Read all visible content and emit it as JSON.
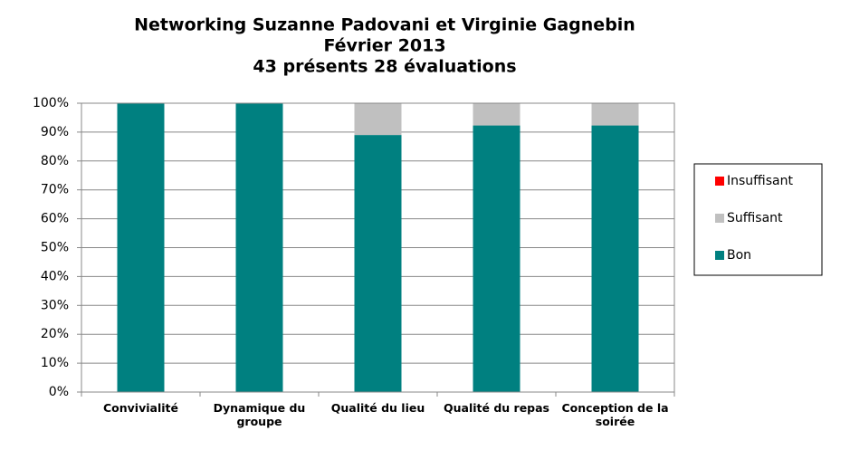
{
  "chart_data": {
    "type": "stacked_bar",
    "title": "Networking Suzanne Padovani et Virginie Gagnebin",
    "subtitle": [
      "Février 2013",
      "43 présents 28 évaluations"
    ],
    "categories": [
      "Convivialité",
      "Dynamique du groupe",
      "Qualité du lieu",
      "Qualité du repas",
      "Conception de la soirée"
    ],
    "series": [
      {
        "name": "Bon",
        "color": "#008080",
        "values": [
          100,
          100,
          89,
          92.3,
          92.3
        ]
      },
      {
        "name": "Suffisant",
        "color": "#c0c0c0",
        "values": [
          0,
          0,
          11,
          7.7,
          7.7
        ]
      },
      {
        "name": "Insuffisant",
        "color": "#ff0000",
        "values": [
          0,
          0,
          0,
          0,
          0
        ]
      }
    ],
    "ylim": [
      0,
      100
    ],
    "yticks": [
      {
        "value": 0,
        "label": "0%"
      },
      {
        "value": 10,
        "label": "10%"
      },
      {
        "value": 20,
        "label": "20%"
      },
      {
        "value": 30,
        "label": "30%"
      },
      {
        "value": 40,
        "label": "40%"
      },
      {
        "value": 50,
        "label": "50%"
      },
      {
        "value": 60,
        "label": "60%"
      },
      {
        "value": 70,
        "label": "70%"
      },
      {
        "value": 80,
        "label": "80%"
      },
      {
        "value": 90,
        "label": "90%"
      },
      {
        "value": 100,
        "label": "100%"
      }
    ],
    "grid": true,
    "legend": "right"
  }
}
